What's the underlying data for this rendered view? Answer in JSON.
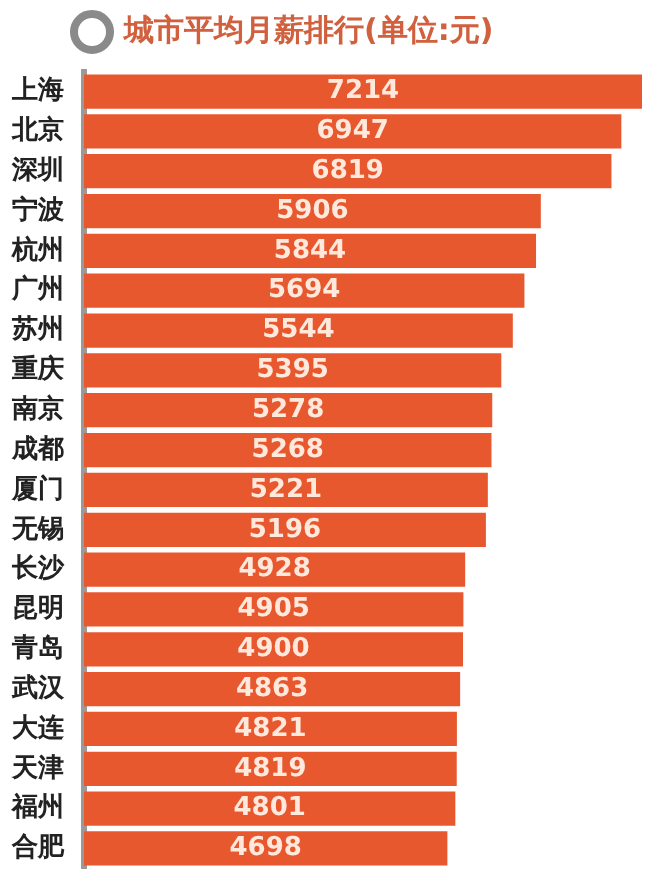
{
  "chart_data": {
    "type": "bar",
    "orientation": "horizontal",
    "title": "城市平均月薪排行(单位:元)",
    "categories": [
      "上海",
      "北京",
      "深圳",
      "宁波",
      "杭州",
      "广州",
      "苏州",
      "重庆",
      "南京",
      "成都",
      "厦门",
      "无锡",
      "长沙",
      "昆明",
      "青岛",
      "武汉",
      "大连",
      "天津",
      "福州",
      "合肥"
    ],
    "values": [
      7214,
      6947,
      6819,
      5906,
      5844,
      5694,
      5544,
      5395,
      5278,
      5268,
      5221,
      5196,
      4928,
      4905,
      4900,
      4863,
      4821,
      4819,
      4801,
      4698
    ],
    "color": "#e8582f",
    "tick_labels": "y",
    "data_labels": true
  }
}
